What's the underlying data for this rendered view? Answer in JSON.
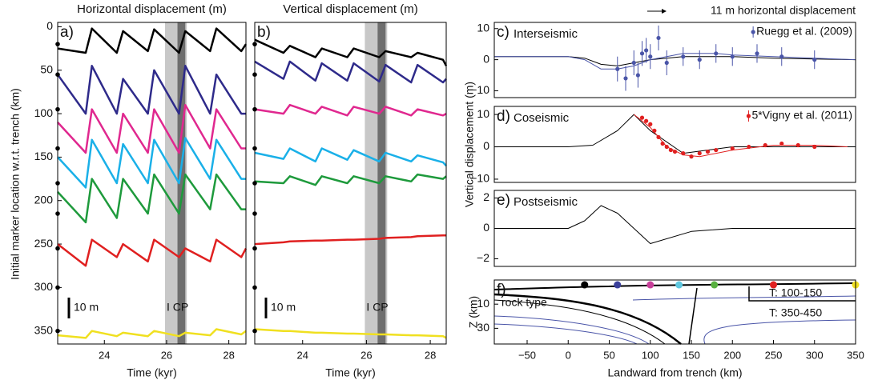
{
  "chart_data": [
    {
      "type": "line",
      "panel": "a)",
      "title": "Horizontal displacement (m)",
      "xlabel": "Time (kyr)",
      "ylabel": "Initial marker location w.r.t. trench (km)",
      "x": [
        22.5,
        23.4,
        23.6,
        24.4,
        24.6,
        25.4,
        25.6,
        26.4,
        26.6,
        27.4,
        27.6,
        28.4,
        28.55
      ],
      "xlim": [
        22.5,
        28.55
      ],
      "xticks": [
        24,
        26,
        28
      ],
      "ylim": [
        365,
        -5
      ],
      "yticks": [
        0,
        50,
        100,
        150,
        200,
        250,
        300,
        350
      ],
      "bands": [
        {
          "x": [
            25.95,
            26.65
          ],
          "color": "#c8c8c8"
        },
        {
          "x": [
            26.35,
            26.6
          ],
          "color": "#6e6e6e"
        }
      ],
      "scale_label": "10 m",
      "band_label": "I CP",
      "marker_locations": [
        20,
        55,
        95,
        140,
        180,
        215,
        255,
        300,
        350
      ],
      "series": [
        {
          "color": "#000000",
          "values": [
            25,
            30,
            2,
            30,
            5,
            28,
            3,
            30,
            5,
            28,
            2,
            28,
            20
          ]
        },
        {
          "color": "#2e2a8a",
          "values": [
            55,
            100,
            45,
            100,
            60,
            100,
            50,
            100,
            45,
            100,
            55,
            100,
            100
          ]
        },
        {
          "color": "#e0288f",
          "values": [
            110,
            145,
            95,
            145,
            100,
            145,
            95,
            145,
            90,
            140,
            95,
            140,
            140
          ]
        },
        {
          "color": "#1ab0e8",
          "values": [
            150,
            185,
            130,
            180,
            135,
            180,
            130,
            180,
            128,
            175,
            130,
            175,
            175
          ]
        },
        {
          "color": "#1e9a3c",
          "values": [
            190,
            225,
            175,
            220,
            175,
            215,
            170,
            215,
            170,
            210,
            170,
            210,
            210
          ]
        },
        {
          "color": "#e02020",
          "values": [
            250,
            275,
            245,
            265,
            250,
            270,
            245,
            265,
            255,
            270,
            245,
            265,
            255
          ]
        },
        {
          "color": "#f0e020",
          "values": [
            355,
            358,
            350,
            356,
            352,
            356,
            350,
            356,
            352,
            355,
            348,
            354,
            350
          ]
        }
      ]
    },
    {
      "type": "line",
      "panel": "b)",
      "title": "Vertical displacement (m)",
      "xlabel": "Time (kyr)",
      "x": [
        22.5,
        23.4,
        23.6,
        24.4,
        24.6,
        25.4,
        25.6,
        26.4,
        26.6,
        27.4,
        27.6,
        28.4,
        28.5
      ],
      "xlim": [
        22.5,
        28.5
      ],
      "xticks": [
        24,
        26,
        28
      ],
      "ylim": [
        365,
        -5
      ],
      "bands": [
        {
          "x": [
            25.95,
            26.65
          ],
          "color": "#c8c8c8"
        },
        {
          "x": [
            26.35,
            26.6
          ],
          "color": "#6e6e6e"
        }
      ],
      "scale_label": "10 m",
      "band_label": "I CP",
      "marker_locations": [
        20,
        55,
        95,
        140,
        180,
        215,
        255,
        300,
        350
      ],
      "series": [
        {
          "color": "#000000",
          "values": [
            15,
            30,
            22,
            35,
            25,
            35,
            25,
            35,
            28,
            35,
            30,
            38,
            45
          ]
        },
        {
          "color": "#2e2a8a",
          "values": [
            40,
            60,
            40,
            62,
            42,
            62,
            42,
            63,
            44,
            64,
            44,
            64,
            60
          ]
        },
        {
          "color": "#e0288f",
          "values": [
            95,
            100,
            90,
            100,
            92,
            102,
            92,
            100,
            92,
            102,
            95,
            102,
            100
          ]
        },
        {
          "color": "#1ab0e8",
          "values": [
            145,
            152,
            140,
            155,
            140,
            153,
            142,
            155,
            145,
            155,
            148,
            156,
            160
          ]
        },
        {
          "color": "#1e9a3c",
          "values": [
            178,
            180,
            172,
            182,
            172,
            180,
            172,
            180,
            172,
            178,
            170,
            175,
            172
          ]
        },
        {
          "color": "#e02020",
          "values": [
            250,
            248,
            247,
            246,
            246,
            245,
            245,
            244,
            243,
            242,
            241,
            240,
            240
          ]
        },
        {
          "color": "#f0e020",
          "values": [
            348,
            350,
            350,
            352,
            352,
            353,
            353,
            354,
            354,
            355,
            355,
            356,
            358
          ]
        }
      ]
    },
    {
      "type": "scatter",
      "panel": "c)",
      "subtitle": "Interseismic",
      "annotation": "11 m horizontal displacement",
      "xlim": [
        -90,
        350
      ],
      "ylim": [
        -12.2,
        12
      ],
      "yticks": [
        {
          "value": -10,
          "label": "−10"
        },
        0,
        10
      ],
      "series": [
        {
          "color": "#000000",
          "x": [
            -90,
            0,
            20,
            40,
            60,
            80,
            100,
            120,
            140,
            160,
            180,
            200,
            250,
            300,
            350
          ],
          "values": [
            1,
            1,
            0.5,
            -1.5,
            -2,
            -1,
            0,
            0.5,
            1,
            1,
            1,
            1,
            0.5,
            0.2,
            0
          ]
        },
        {
          "color": "#4a55a8",
          "x": [
            -90,
            0,
            20,
            40,
            60,
            80,
            100,
            120,
            140,
            160,
            180,
            200,
            250,
            300,
            350
          ],
          "values": [
            1,
            1,
            0,
            -3,
            -3,
            -2,
            0,
            1,
            2,
            2,
            2,
            1.5,
            1,
            0.5,
            0
          ]
        }
      ],
      "observations": {
        "name": "Ruegg et al. (2009)",
        "color": "#4a55a8",
        "x": [
          60,
          70,
          80,
          85,
          90,
          95,
          100,
          110,
          120,
          140,
          160,
          180,
          200,
          230,
          260,
          300
        ],
        "values": [
          -3,
          -6,
          -1,
          -5,
          2,
          3,
          1,
          7,
          -1,
          1,
          0,
          2,
          1,
          2,
          1,
          0
        ],
        "errors": [
          4,
          4,
          4,
          4,
          4,
          4,
          4,
          4,
          4,
          3,
          3,
          3,
          3,
          3,
          3,
          3
        ]
      }
    },
    {
      "type": "scatter",
      "panel": "d)",
      "subtitle": "Coseismic",
      "ylabel": "Vertical displacement (m)",
      "xlim": [
        -90,
        350
      ],
      "ylim": [
        -11,
        12.5
      ],
      "yticks": [
        {
          "value": -10,
          "label": "−10"
        },
        0,
        10
      ],
      "series": [
        {
          "color": "#000000",
          "x": [
            -90,
            0,
            30,
            60,
            80,
            100,
            140,
            200,
            350
          ],
          "values": [
            0,
            0,
            0.5,
            5,
            10,
            5,
            -2,
            0,
            0
          ]
        },
        {
          "color": "#e02020",
          "x": [
            80,
            100,
            120,
            140,
            160,
            200,
            250,
            300,
            340
          ],
          "values": [
            10,
            6,
            0,
            -2.5,
            -3,
            -1,
            0.5,
            0.5,
            0
          ]
        }
      ],
      "observations": {
        "name": "5*Vigny et al. (2011)",
        "color": "#e02020",
        "x": [
          90,
          95,
          100,
          105,
          110,
          115,
          120,
          125,
          130,
          140,
          150,
          160,
          170,
          180,
          200,
          220,
          240,
          260,
          280,
          300
        ],
        "values": [
          9,
          8,
          7,
          5,
          3,
          1,
          0,
          -1,
          -1.5,
          -2,
          -3,
          -2,
          -1.5,
          -1,
          -0.5,
          0,
          0.5,
          1,
          0.5,
          0
        ]
      }
    },
    {
      "type": "scatter",
      "panel": "e)",
      "subtitle": "Postseismic",
      "xlim": [
        -90,
        350
      ],
      "ylim": [
        -2.5,
        2.5
      ],
      "yticks": [
        {
          "value": -2,
          "label": "−2"
        },
        0,
        2
      ],
      "series": [
        {
          "color": "#000000",
          "x": [
            -90,
            0,
            20,
            40,
            60,
            80,
            100,
            150,
            200,
            350
          ],
          "values": [
            0,
            0,
            0.5,
            1.5,
            1,
            0,
            -1,
            -0.2,
            0,
            0
          ]
        }
      ]
    },
    {
      "type": "scatter",
      "panel": "f)",
      "xlabel": "Landward from trench (km)",
      "ylabel": "Z (km)",
      "xlim": [
        -90,
        350
      ],
      "xticks": [
        {
          "value": -50,
          "label": "−50"
        },
        0,
        50,
        100,
        150,
        200,
        250,
        300,
        350
      ],
      "ylim": [
        43,
        -10
      ],
      "yticks": [
        10,
        30
      ],
      "annotations": [
        "rock type",
        "T: 100-150",
        "T: 350-450"
      ],
      "markers": {
        "x": [
          20,
          60,
          100,
          135,
          178,
          250,
          350
        ],
        "values": [
          -6,
          -6,
          -6,
          -6,
          -6,
          -6,
          -6
        ],
        "colors": [
          "#000000",
          "#3a3f9a",
          "#c8409a",
          "#5fc8e0",
          "#58b040",
          "#e02020",
          "#f0e020"
        ]
      }
    }
  ]
}
